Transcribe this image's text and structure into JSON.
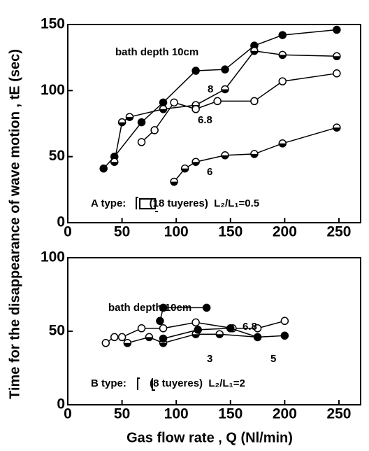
{
  "chart_data": [
    {
      "type": "line",
      "ylabel": "Time for the disappearance of wave motion , tE (sec)",
      "xlim": [
        0,
        270
      ],
      "xticks": [
        0,
        50,
        100,
        150,
        200,
        250
      ],
      "ylim": [
        0,
        150
      ],
      "yticks": [
        0,
        50,
        100,
        150
      ],
      "annotation": "A type:        (18 tuyeres)  L₂/L₁=0.5",
      "color": "#000000",
      "series": [
        {
          "name": "bath depth 10cm",
          "marker": "filled",
          "x": [
            33,
            43,
            68,
            88,
            118,
            145,
            172,
            198,
            248
          ],
          "values": [
            41,
            50,
            76,
            91,
            115,
            116,
            134,
            142,
            146
          ]
        },
        {
          "name": "8",
          "marker": "half",
          "x": [
            43,
            50,
            57,
            88,
            118,
            145,
            172,
            198,
            248
          ],
          "values": [
            46,
            76,
            80,
            86,
            89,
            101,
            130,
            127,
            126
          ]
        },
        {
          "name": "6.8",
          "marker": "open",
          "x": [
            68,
            80,
            98,
            118,
            138,
            172,
            198,
            248
          ],
          "values": [
            61,
            70,
            91,
            86,
            92,
            92,
            107,
            113
          ]
        },
        {
          "name": "6",
          "marker": "half",
          "x": [
            98,
            108,
            118,
            145,
            172,
            198,
            248
          ],
          "values": [
            31,
            41,
            46,
            51,
            52,
            60,
            72
          ]
        }
      ]
    },
    {
      "type": "line",
      "xlabel": "Gas flow rate , Q (Nl/min)",
      "xlim": [
        0,
        270
      ],
      "xticks": [
        0,
        50,
        100,
        150,
        200,
        250
      ],
      "ylim": [
        0,
        100
      ],
      "yticks": [
        0,
        50,
        100
      ],
      "annotation": "B type:        (8 tuyeres)  L₂/L₁=2",
      "color": "#000000",
      "series": [
        {
          "name": "bath depth 10cm",
          "marker": "filled",
          "x": [
            85,
            88,
            128
          ],
          "values": [
            57,
            66,
            66
          ]
        },
        {
          "name": "6.8",
          "marker": "open",
          "x": [
            35,
            43,
            50,
            68,
            88,
            118,
            152,
            175,
            200
          ],
          "values": [
            42,
            46,
            46,
            52,
            52,
            56,
            52,
            52,
            57
          ]
        },
        {
          "name": "3",
          "marker": "half",
          "x": [
            55,
            75,
            88,
            118,
            140,
            175
          ],
          "values": [
            42,
            46,
            42,
            48,
            48,
            46
          ]
        },
        {
          "name": "5",
          "marker": "filled",
          "x": [
            88,
            120,
            150,
            175,
            200
          ],
          "values": [
            45,
            51,
            52,
            46,
            47
          ]
        }
      ]
    }
  ]
}
